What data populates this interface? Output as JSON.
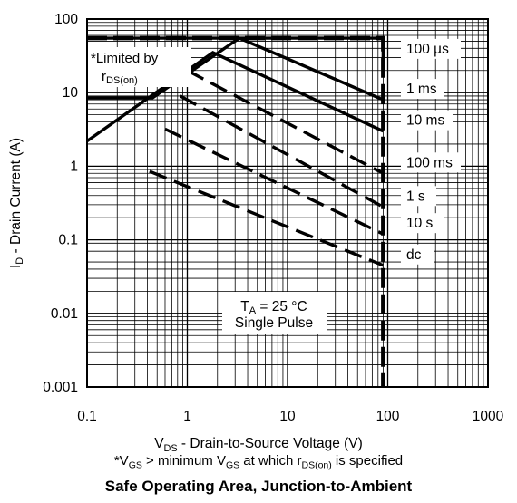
{
  "chart_data": {
    "type": "line",
    "title": "",
    "x_scale": "log",
    "y_scale": "log",
    "xlim": [
      0.1,
      1000
    ],
    "ylim": [
      0.001,
      100
    ],
    "grid": true,
    "x_ticks": [
      "0.1",
      "1",
      "10",
      "100",
      "1000"
    ],
    "y_ticks": [
      "0.001",
      "0.01",
      "0.1",
      "1",
      "10",
      "100"
    ],
    "ylabel": {
      "main": "I",
      "sub": "D",
      "rest": " - Drain Current (A)"
    },
    "xlabel": {
      "main": "V",
      "sub": "DS",
      "rest": " - Drain-to-Source Voltage (V)"
    },
    "note": {
      "p1": "*V",
      "s1": "GS",
      "p2": " > minimum V",
      "s2": "GS",
      "p3": " at which r",
      "s3": "DS(on)",
      "p4": " is specified"
    },
    "caption": "Safe Operating Area, Junction-to-Ambient",
    "annotations": {
      "limited_line1": "*Limited by",
      "limited_line2_main": "r",
      "limited_line2_sub": "DS(on)",
      "ta_main": "T",
      "ta_sub": "A",
      "ta_rest": " = 25 °C",
      "single_pulse": "Single Pulse"
    },
    "series": [
      {
        "name": "100 µs",
        "style": "solid",
        "points": [
          [
            0.1,
            55
          ],
          [
            90,
            55
          ],
          [
            90,
            28
          ]
        ]
      },
      {
        "name": "1 ms",
        "style": "solid",
        "points": [
          [
            0.1,
            8.5
          ],
          [
            0.45,
            8.5
          ],
          [
            3.3,
            55
          ],
          [
            90,
            8
          ]
        ]
      },
      {
        "name": "10 ms",
        "style": "solid",
        "points": [
          [
            0.1,
            2.2
          ],
          [
            1.8,
            35
          ],
          [
            90,
            3
          ]
        ]
      },
      {
        "name": "100 ms",
        "style": "dashed",
        "points": [
          [
            1.0,
            20
          ],
          [
            90,
            0.8
          ]
        ]
      },
      {
        "name": "1 s",
        "style": "dashed",
        "points": [
          [
            0.85,
            9
          ],
          [
            90,
            0.28
          ]
        ]
      },
      {
        "name": "10 s",
        "style": "dashed",
        "points": [
          [
            0.6,
            3.2
          ],
          [
            90,
            0.12
          ]
        ]
      },
      {
        "name": "dc",
        "style": "dashed",
        "points": [
          [
            0.42,
            0.85
          ],
          [
            90,
            0.045
          ]
        ]
      }
    ],
    "limit_line": {
      "name": "Limited by rDS(on)",
      "style": "heavy-dashed",
      "points": [
        [
          0.1,
          55
        ],
        [
          90,
          55
        ],
        [
          90,
          0.001
        ]
      ]
    }
  }
}
